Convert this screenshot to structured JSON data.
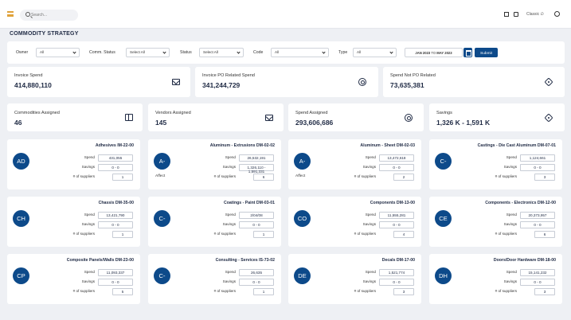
{
  "search": {
    "placeholder": "Search..."
  },
  "header": {
    "user": "Classic ∅"
  },
  "page": {
    "title": "COMMODITY STRATEGY"
  },
  "filters": {
    "owner_label": "Owner",
    "owner_value": "All",
    "comm_status_label": "Comm. Status",
    "comm_status_value": "Select All",
    "status_label": "Status",
    "status_value": "Select All",
    "code_label": "Code",
    "code_value": "All",
    "type_label": "Type",
    "type_value": "All",
    "date_from": "JAN 2023",
    "date_to_word": "TO",
    "date_to": "MAY 2023",
    "submit_label": "Submit"
  },
  "stats_row1": [
    {
      "label": "Invoice Spend",
      "value": "414,880,110",
      "icon": "envelope-icon"
    },
    {
      "label": "Invoice PO Related Spend",
      "value": "341,244,729",
      "icon": "target-icon"
    },
    {
      "label": "Spend Not PO Related",
      "value": "73,635,381",
      "icon": "tag-icon"
    }
  ],
  "stats_row2": [
    {
      "label": "Commodities Assigned",
      "value": "46",
      "icon": "panel-icon"
    },
    {
      "label": "Vendors Assigned",
      "value": "145",
      "icon": "envelope-icon"
    },
    {
      "label": "Spend Assigned",
      "value": "293,606,686",
      "icon": "target-icon"
    },
    {
      "label": "Savings",
      "value": "1,326 K - 1,591 K",
      "icon": "tag-icon"
    }
  ],
  "card_labels": {
    "spend": "Spend",
    "savings": "Savings",
    "suppliers": "# of suppliers"
  },
  "cards": [
    {
      "badge": "AD",
      "sub": "",
      "title": "Adhesives  IM-22-00",
      "spend": "431,055",
      "savings": "0 - 0",
      "suppliers": "1"
    },
    {
      "badge": "A-",
      "sub": "Affect",
      "title": "Aluminum - Extrusions  DM-02-02",
      "spend": "26,532,191",
      "savings": "1,326,110 - 1,591,331",
      "suppliers": "6"
    },
    {
      "badge": "A-",
      "sub": "Affect",
      "title": "Aluminum - Sheet  DM-02-03",
      "spend": "13,472,618",
      "savings": "0 - 0",
      "suppliers": "2"
    },
    {
      "badge": "C-",
      "sub": "",
      "title": "Castings - Die Cast Aluminum  DM-07-01",
      "spend": "1,124,661",
      "savings": "0 - 0",
      "suppliers": "3"
    },
    {
      "badge": "CH",
      "sub": "",
      "title": "Chassis  DM-35-00",
      "spend": "13,421,790",
      "savings": "0 - 0",
      "suppliers": "1"
    },
    {
      "badge": "C-",
      "sub": "",
      "title": "Coatings - Paint  DM-03-01",
      "spend": "2/04/08",
      "savings": "0 - 0",
      "suppliers": "1"
    },
    {
      "badge": "CO",
      "sub": "",
      "title": "Components  DM-13-00",
      "spend": "11,555,281",
      "savings": "0 - 0",
      "suppliers": "4"
    },
    {
      "badge": "CE",
      "sub": "",
      "title": "Components - Electronics  DM-12-00",
      "spend": "20,373,957",
      "savings": "0 - 0",
      "suppliers": "6"
    },
    {
      "badge": "CP",
      "sub": "",
      "title": "Composite Panels/Walls  DM-23-00",
      "spend": "11,093,337",
      "savings": "0 - 0",
      "suppliers": "5"
    },
    {
      "badge": "C-",
      "sub": "",
      "title": "Consulting - Services  IS-73-02",
      "spend": "26,635",
      "savings": "0 - 0",
      "suppliers": "1"
    },
    {
      "badge": "DE",
      "sub": "",
      "title": "Decals  DM-17-00",
      "spend": "1,521,774",
      "savings": "0 - 0",
      "suppliers": "3"
    },
    {
      "badge": "DH",
      "sub": "",
      "title": "Doors/Door Hardware  DM-18-00",
      "spend": "15,141,232",
      "savings": "0 - 0",
      "suppliers": "3"
    }
  ],
  "colors": {
    "accent": "#0d4a8a",
    "menu": "#e0a23a",
    "background": "#eef0f4"
  }
}
